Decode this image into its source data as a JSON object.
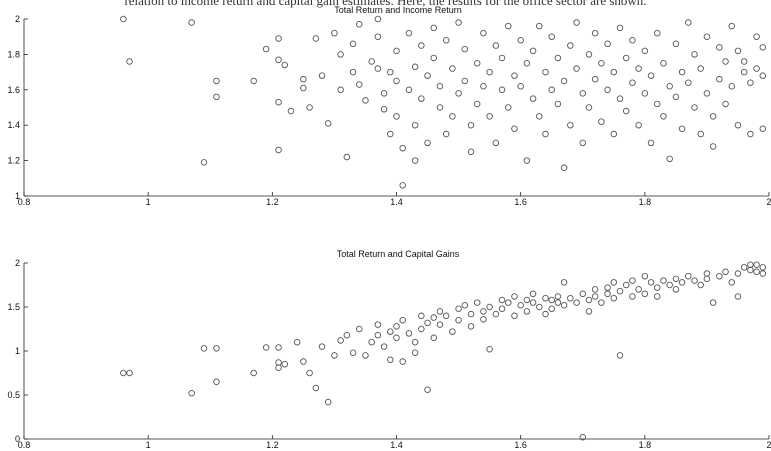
{
  "caption": "relation to income return and capital gain estimates. Here, the results for the office sector are shown.",
  "chart_data": [
    {
      "type": "scatter",
      "title": "Total Return and Income Return",
      "xlim": [
        0.8,
        2
      ],
      "ylim": [
        1,
        2
      ],
      "xticks": [
        "0.8",
        "1",
        "1.2",
        "1.4",
        "1.6",
        "1.8",
        "2"
      ],
      "yticks": [
        "1",
        "1.2",
        "1.4",
        "1.6",
        "1.8",
        "2"
      ],
      "grid": false,
      "marker": "circle",
      "marker_color": "#555555",
      "points": [
        [
          0.96,
          2.0
        ],
        [
          0.97,
          1.76
        ],
        [
          1.07,
          1.98
        ],
        [
          1.09,
          1.19
        ],
        [
          1.11,
          1.65
        ],
        [
          1.11,
          1.56
        ],
        [
          1.17,
          1.65
        ],
        [
          1.19,
          1.83
        ],
        [
          1.21,
          1.89
        ],
        [
          1.21,
          1.77
        ],
        [
          1.21,
          1.53
        ],
        [
          1.21,
          1.26
        ],
        [
          1.22,
          1.74
        ],
        [
          1.23,
          1.48
        ],
        [
          1.25,
          1.66
        ],
        [
          1.25,
          1.61
        ],
        [
          1.26,
          1.5
        ],
        [
          1.27,
          1.89
        ],
        [
          1.28,
          1.68
        ],
        [
          1.29,
          1.41
        ],
        [
          1.3,
          1.92
        ],
        [
          1.31,
          1.8
        ],
        [
          1.31,
          1.6
        ],
        [
          1.32,
          1.22
        ],
        [
          1.33,
          1.7
        ],
        [
          1.33,
          1.86
        ],
        [
          1.34,
          1.97
        ],
        [
          1.34,
          1.63
        ],
        [
          1.35,
          1.54
        ],
        [
          1.36,
          1.76
        ],
        [
          1.37,
          2.0
        ],
        [
          1.37,
          1.9
        ],
        [
          1.37,
          1.72
        ],
        [
          1.38,
          1.58
        ],
        [
          1.38,
          1.49
        ],
        [
          1.39,
          1.35
        ],
        [
          1.39,
          1.7
        ],
        [
          1.4,
          1.82
        ],
        [
          1.4,
          1.65
        ],
        [
          1.4,
          1.45
        ],
        [
          1.41,
          1.27
        ],
        [
          1.41,
          1.06
        ],
        [
          1.42,
          1.92
        ],
        [
          1.42,
          1.6
        ],
        [
          1.43,
          1.73
        ],
        [
          1.43,
          1.4
        ],
        [
          1.43,
          1.2
        ],
        [
          1.44,
          1.85
        ],
        [
          1.44,
          1.55
        ],
        [
          1.45,
          1.68
        ],
        [
          1.45,
          1.3
        ],
        [
          1.46,
          1.95
        ],
        [
          1.46,
          1.78
        ],
        [
          1.47,
          1.5
        ],
        [
          1.47,
          1.62
        ],
        [
          1.48,
          1.88
        ],
        [
          1.48,
          1.35
        ],
        [
          1.49,
          1.72
        ],
        [
          1.49,
          1.45
        ],
        [
          1.5,
          1.98
        ],
        [
          1.5,
          1.58
        ],
        [
          1.51,
          1.83
        ],
        [
          1.51,
          1.65
        ],
        [
          1.52,
          1.4
        ],
        [
          1.52,
          1.25
        ],
        [
          1.53,
          1.75
        ],
        [
          1.53,
          1.52
        ],
        [
          1.54,
          1.92
        ],
        [
          1.54,
          1.62
        ],
        [
          1.55,
          1.7
        ],
        [
          1.55,
          1.45
        ],
        [
          1.56,
          1.85
        ],
        [
          1.56,
          1.3
        ],
        [
          1.57,
          1.6
        ],
        [
          1.57,
          1.78
        ],
        [
          1.58,
          1.96
        ],
        [
          1.58,
          1.5
        ],
        [
          1.59,
          1.68
        ],
        [
          1.59,
          1.38
        ],
        [
          1.6,
          1.88
        ],
        [
          1.6,
          1.62
        ],
        [
          1.61,
          1.75
        ],
        [
          1.61,
          1.2
        ],
        [
          1.62,
          1.55
        ],
        [
          1.62,
          1.82
        ],
        [
          1.63,
          1.96
        ],
        [
          1.63,
          1.45
        ],
        [
          1.64,
          1.7
        ],
        [
          1.64,
          1.35
        ],
        [
          1.65,
          1.6
        ],
        [
          1.65,
          1.9
        ],
        [
          1.66,
          1.78
        ],
        [
          1.66,
          1.52
        ],
        [
          1.67,
          1.16
        ],
        [
          1.67,
          1.65
        ],
        [
          1.68,
          1.85
        ],
        [
          1.68,
          1.4
        ],
        [
          1.69,
          1.72
        ],
        [
          1.69,
          1.98
        ],
        [
          1.7,
          1.58
        ],
        [
          1.7,
          1.3
        ],
        [
          1.71,
          1.8
        ],
        [
          1.71,
          1.5
        ],
        [
          1.72,
          1.66
        ],
        [
          1.72,
          1.92
        ],
        [
          1.73,
          1.75
        ],
        [
          1.73,
          1.42
        ],
        [
          1.74,
          1.6
        ],
        [
          1.74,
          1.86
        ],
        [
          1.75,
          1.7
        ],
        [
          1.75,
          1.35
        ],
        [
          1.76,
          1.55
        ],
        [
          1.76,
          1.95
        ],
        [
          1.77,
          1.78
        ],
        [
          1.77,
          1.48
        ],
        [
          1.78,
          1.64
        ],
        [
          1.78,
          1.88
        ],
        [
          1.79,
          1.4
        ],
        [
          1.79,
          1.72
        ],
        [
          1.8,
          1.58
        ],
        [
          1.8,
          1.82
        ],
        [
          1.81,
          1.68
        ],
        [
          1.81,
          1.3
        ],
        [
          1.82,
          1.52
        ],
        [
          1.82,
          1.92
        ],
        [
          1.83,
          1.75
        ],
        [
          1.83,
          1.45
        ],
        [
          1.84,
          1.62
        ],
        [
          1.84,
          1.21
        ],
        [
          1.85,
          1.86
        ],
        [
          1.85,
          1.56
        ],
        [
          1.86,
          1.7
        ],
        [
          1.86,
          1.38
        ],
        [
          1.87,
          1.98
        ],
        [
          1.87,
          1.64
        ],
        [
          1.88,
          1.5
        ],
        [
          1.88,
          1.8
        ],
        [
          1.89,
          1.35
        ],
        [
          1.89,
          1.72
        ],
        [
          1.9,
          1.9
        ],
        [
          1.9,
          1.58
        ],
        [
          1.91,
          1.45
        ],
        [
          1.91,
          1.28
        ],
        [
          1.92,
          1.66
        ],
        [
          1.92,
          1.84
        ],
        [
          1.93,
          1.76
        ],
        [
          1.93,
          1.52
        ],
        [
          1.94,
          1.96
        ],
        [
          1.94,
          1.62
        ],
        [
          1.95,
          1.4
        ],
        [
          1.95,
          1.82
        ],
        [
          1.96,
          1.7
        ],
        [
          1.96,
          1.76
        ],
        [
          1.97,
          1.35
        ],
        [
          1.97,
          1.64
        ],
        [
          1.98,
          1.9
        ],
        [
          1.98,
          1.72
        ],
        [
          1.99,
          1.68
        ],
        [
          1.99,
          1.38
        ],
        [
          1.99,
          1.84
        ]
      ]
    },
    {
      "type": "scatter",
      "title": "Total Return and Capital Gains",
      "xlim": [
        0.8,
        2
      ],
      "ylim": [
        0,
        2
      ],
      "xticks": [
        "0.8",
        "1",
        "1.2",
        "1.4",
        "1.6",
        "1.8",
        "2"
      ],
      "yticks": [
        "0",
        "0.5",
        "1",
        "1.5",
        "2"
      ],
      "grid": false,
      "marker": "circle",
      "marker_color": "#555555",
      "points": [
        [
          0.96,
          0.75
        ],
        [
          0.97,
          0.75
        ],
        [
          1.07,
          0.52
        ],
        [
          1.09,
          1.03
        ],
        [
          1.11,
          1.03
        ],
        [
          1.11,
          0.65
        ],
        [
          1.17,
          0.75
        ],
        [
          1.19,
          1.04
        ],
        [
          1.21,
          1.04
        ],
        [
          1.21,
          0.87
        ],
        [
          1.21,
          0.81
        ],
        [
          1.22,
          0.85
        ],
        [
          1.24,
          1.1
        ],
        [
          1.25,
          0.88
        ],
        [
          1.26,
          0.75
        ],
        [
          1.27,
          0.58
        ],
        [
          1.28,
          1.05
        ],
        [
          1.29,
          0.42
        ],
        [
          1.3,
          0.95
        ],
        [
          1.31,
          1.12
        ],
        [
          1.32,
          1.18
        ],
        [
          1.33,
          0.98
        ],
        [
          1.34,
          1.25
        ],
        [
          1.35,
          0.95
        ],
        [
          1.36,
          1.1
        ],
        [
          1.37,
          1.3
        ],
        [
          1.37,
          1.18
        ],
        [
          1.38,
          1.05
        ],
        [
          1.39,
          0.9
        ],
        [
          1.39,
          1.22
        ],
        [
          1.4,
          1.28
        ],
        [
          1.4,
          1.15
        ],
        [
          1.41,
          0.88
        ],
        [
          1.41,
          1.35
        ],
        [
          1.42,
          1.2
        ],
        [
          1.43,
          1.1
        ],
        [
          1.43,
          0.98
        ],
        [
          1.44,
          1.4
        ],
        [
          1.44,
          1.25
        ],
        [
          1.45,
          1.32
        ],
        [
          1.45,
          0.56
        ],
        [
          1.46,
          1.38
        ],
        [
          1.46,
          1.15
        ],
        [
          1.47,
          1.45
        ],
        [
          1.47,
          1.3
        ],
        [
          1.48,
          1.4
        ],
        [
          1.49,
          1.22
        ],
        [
          1.5,
          1.48
        ],
        [
          1.5,
          1.35
        ],
        [
          1.51,
          1.52
        ],
        [
          1.52,
          1.42
        ],
        [
          1.52,
          1.28
        ],
        [
          1.53,
          1.55
        ],
        [
          1.54,
          1.45
        ],
        [
          1.54,
          1.36
        ],
        [
          1.55,
          1.5
        ],
        [
          1.55,
          1.02
        ],
        [
          1.56,
          1.42
        ],
        [
          1.57,
          1.58
        ],
        [
          1.57,
          1.48
        ],
        [
          1.58,
          1.55
        ],
        [
          1.59,
          1.4
        ],
        [
          1.59,
          1.62
        ],
        [
          1.6,
          1.52
        ],
        [
          1.61,
          1.45
        ],
        [
          1.61,
          1.58
        ],
        [
          1.62,
          1.55
        ],
        [
          1.62,
          1.65
        ],
        [
          1.63,
          1.5
        ],
        [
          1.64,
          1.6
        ],
        [
          1.64,
          1.42
        ],
        [
          1.65,
          1.58
        ],
        [
          1.65,
          1.48
        ],
        [
          1.66,
          1.62
        ],
        [
          1.66,
          1.55
        ],
        [
          1.67,
          1.52
        ],
        [
          1.67,
          1.78
        ],
        [
          1.68,
          1.6
        ],
        [
          1.69,
          1.55
        ],
        [
          1.7,
          0.02
        ],
        [
          1.7,
          1.65
        ],
        [
          1.71,
          1.58
        ],
        [
          1.71,
          1.45
        ],
        [
          1.72,
          1.7
        ],
        [
          1.72,
          1.62
        ],
        [
          1.73,
          1.55
        ],
        [
          1.74,
          1.72
        ],
        [
          1.74,
          1.65
        ],
        [
          1.75,
          1.6
        ],
        [
          1.75,
          1.78
        ],
        [
          1.76,
          0.95
        ],
        [
          1.76,
          1.68
        ],
        [
          1.77,
          1.75
        ],
        [
          1.78,
          1.62
        ],
        [
          1.78,
          1.8
        ],
        [
          1.79,
          1.7
        ],
        [
          1.8,
          1.65
        ],
        [
          1.8,
          1.85
        ],
        [
          1.81,
          1.78
        ],
        [
          1.82,
          1.72
        ],
        [
          1.82,
          1.62
        ],
        [
          1.83,
          1.8
        ],
        [
          1.84,
          1.75
        ],
        [
          1.85,
          1.82
        ],
        [
          1.85,
          1.7
        ],
        [
          1.86,
          1.78
        ],
        [
          1.87,
          1.85
        ],
        [
          1.88,
          1.8
        ],
        [
          1.89,
          1.75
        ],
        [
          1.9,
          1.88
        ],
        [
          1.9,
          1.82
        ],
        [
          1.91,
          1.55
        ],
        [
          1.92,
          1.85
        ],
        [
          1.93,
          1.9
        ],
        [
          1.94,
          1.78
        ],
        [
          1.95,
          1.88
        ],
        [
          1.95,
          1.62
        ],
        [
          1.96,
          1.95
        ],
        [
          1.97,
          1.98
        ],
        [
          1.97,
          1.92
        ],
        [
          1.98,
          1.9
        ],
        [
          1.98,
          1.98
        ],
        [
          1.99,
          1.95
        ],
        [
          1.99,
          1.88
        ]
      ]
    }
  ]
}
